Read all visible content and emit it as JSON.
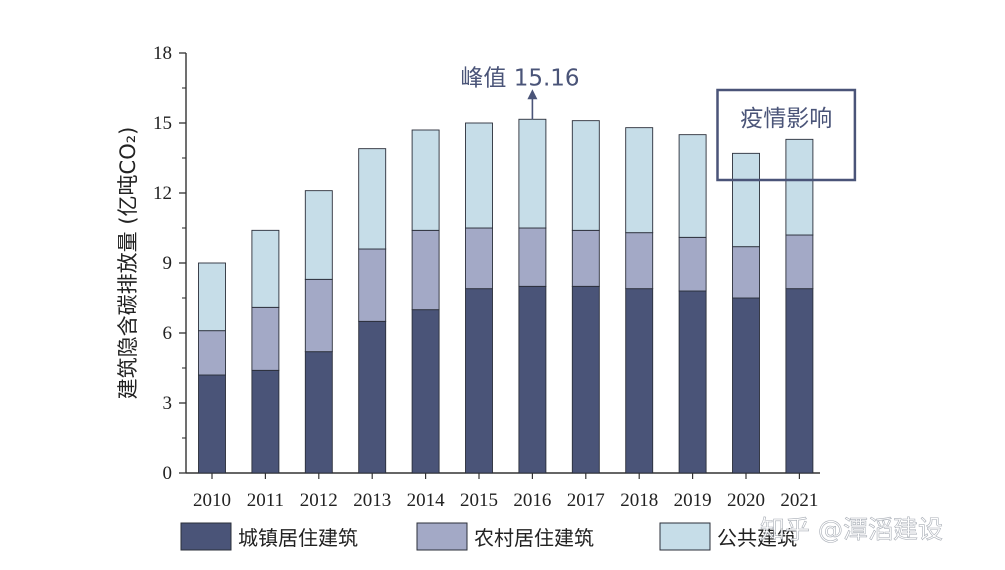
{
  "chart_data": {
    "type": "bar",
    "stacked": true,
    "categories": [
      "2010",
      "2011",
      "2012",
      "2013",
      "2014",
      "2015",
      "2016",
      "2017",
      "2018",
      "2019",
      "2020",
      "2021"
    ],
    "series": [
      {
        "name": "城镇居住建筑",
        "color": "#4a5478",
        "values": [
          4.2,
          4.4,
          5.2,
          6.5,
          7.0,
          7.9,
          8.0,
          8.0,
          7.9,
          7.8,
          7.5,
          7.9
        ]
      },
      {
        "name": "农村居住建筑",
        "color": "#a3a9c6",
        "values": [
          1.9,
          2.7,
          3.1,
          3.1,
          3.4,
          2.6,
          2.5,
          2.4,
          2.4,
          2.3,
          2.2,
          2.3
        ]
      },
      {
        "name": "公共建筑",
        "color": "#c6dde8",
        "values": [
          2.9,
          3.3,
          3.8,
          4.3,
          4.3,
          4.5,
          4.66,
          4.7,
          4.5,
          4.4,
          4.0,
          4.1
        ]
      }
    ],
    "ylabel": "建筑隐含碳排放量 (亿吨CO₂)",
    "ylim": [
      0,
      18
    ],
    "yticks": [
      "0",
      "3",
      "6",
      "9",
      "12",
      "15",
      "18"
    ],
    "grid": false,
    "legend_position": "bottom",
    "annotations": {
      "peak_label": "峰值 15.16",
      "peak_year": "2016",
      "peak_value": 15.16,
      "box_label": "疫情影响",
      "box_years": [
        "2020",
        "2021"
      ]
    }
  },
  "watermark": "知乎 @潭滔建设"
}
